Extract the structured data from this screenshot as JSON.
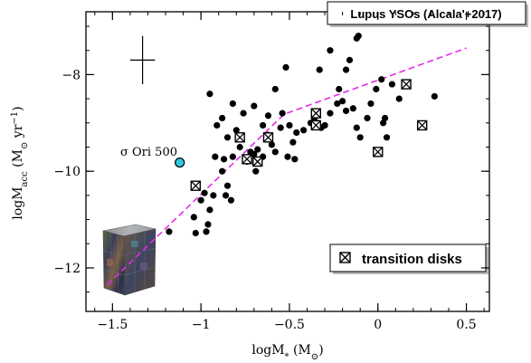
{
  "chart_data": {
    "type": "scatter",
    "title": "Lupus YSOs (Alcala'+2017)",
    "xlabel": {
      "main": "logM",
      "sub": "*",
      "unit_open": " (M",
      "unit_sym": "⊙",
      "unit_close": ")"
    },
    "ylabel": {
      "main": "logM",
      "sub": "acc",
      "unit_open": " (M",
      "unit_sym": "⊙",
      "unit_mid": " yr",
      "unit_sup": "−1",
      "unit_close": ")"
    },
    "xlim": [
      -1.65,
      0.63
    ],
    "ylim": [
      -12.9,
      -6.7
    ],
    "x_ticks": [
      {
        "v": -1.5,
        "label": "−1.5"
      },
      {
        "v": -1,
        "label": "−1"
      },
      {
        "v": -0.5,
        "label": "−0.5"
      },
      {
        "v": 0,
        "label": "0"
      },
      {
        "v": 0.5,
        "label": "0.5"
      }
    ],
    "y_ticks": [
      {
        "v": -8,
        "label": "−8"
      },
      {
        "v": -10,
        "label": "−10"
      },
      {
        "v": -12,
        "label": "−12"
      }
    ],
    "x_minor_step": 0.1,
    "y_minor_step": 0.5,
    "error_bar": {
      "x": -1.33,
      "y": -7.7,
      "dx": 0.07,
      "dy": 0.5
    },
    "series": [
      {
        "marker": "filled-circle",
        "points": [
          [
            -1.18,
            -11.25
          ],
          [
            -1.03,
            -11.28
          ],
          [
            -1.04,
            -10.95
          ],
          [
            -0.97,
            -11.25
          ],
          [
            -0.96,
            -11.1
          ],
          [
            -0.95,
            -10.8
          ],
          [
            -1.0,
            -10.6
          ],
          [
            -0.98,
            -10.45
          ],
          [
            -0.93,
            -10.5
          ],
          [
            -0.86,
            -10.5
          ],
          [
            -0.85,
            -10.3
          ],
          [
            -0.83,
            -10.6
          ],
          [
            -0.88,
            -10.0
          ],
          [
            -0.92,
            -9.7
          ],
          [
            -0.87,
            -9.75
          ],
          [
            -0.82,
            -9.7
          ],
          [
            -0.85,
            -9.3
          ],
          [
            -0.78,
            -9.5
          ],
          [
            -0.74,
            -9.8
          ],
          [
            -0.72,
            -9.6
          ],
          [
            -0.7,
            -9.65
          ],
          [
            -0.68,
            -9.55
          ],
          [
            -0.65,
            -9.7
          ],
          [
            -0.62,
            -9.25
          ],
          [
            -0.6,
            -9.45
          ],
          [
            -0.58,
            -9.6
          ],
          [
            -0.55,
            -9.1
          ],
          [
            -0.51,
            -9.7
          ],
          [
            -0.48,
            -9.4
          ],
          [
            -0.46,
            -9.2
          ],
          [
            -0.42,
            -9.15
          ],
          [
            -0.38,
            -9.0
          ],
          [
            -0.36,
            -8.9
          ],
          [
            -0.3,
            -9.05
          ],
          [
            -0.27,
            -8.8
          ],
          [
            -0.23,
            -8.6
          ],
          [
            -0.22,
            -8.3
          ],
          [
            -0.2,
            -8.55
          ],
          [
            -0.18,
            -8.75
          ],
          [
            -0.14,
            -8.7
          ],
          [
            -0.12,
            -9.1
          ],
          [
            -0.1,
            -9.3
          ],
          [
            -0.06,
            -8.9
          ],
          [
            -0.04,
            -8.6
          ],
          [
            -0.01,
            -8.3
          ],
          [
            0.04,
            -8.9
          ],
          [
            0.05,
            -9.3
          ],
          [
            0.08,
            -8.2
          ],
          [
            0.12,
            -8.5
          ],
          [
            -0.12,
            -7.25
          ],
          [
            -0.11,
            -7.2
          ],
          [
            -0.16,
            -7.7
          ],
          [
            -0.18,
            -7.9
          ],
          [
            -0.27,
            -7.5
          ],
          [
            -0.33,
            -7.9
          ],
          [
            -0.54,
            -8.8
          ],
          [
            -0.58,
            -8.3
          ],
          [
            -0.62,
            -8.85
          ],
          [
            -0.7,
            -8.65
          ],
          [
            -0.76,
            -8.8
          ],
          [
            -0.82,
            -8.6
          ],
          [
            -0.88,
            -8.9
          ],
          [
            -0.95,
            -8.4
          ],
          [
            -0.91,
            -9.05
          ],
          [
            -0.8,
            -9.15
          ],
          [
            -0.65,
            -9.05
          ],
          [
            -0.5,
            -9.05
          ],
          [
            -0.32,
            -9.1
          ],
          [
            0.02,
            -8.1
          ],
          [
            0.32,
            -8.45
          ],
          [
            -0.52,
            -7.85
          ],
          [
            -0.47,
            -9.75
          ],
          [
            -0.69,
            -10.0
          ],
          [
            -0.34,
            -9.0
          ],
          [
            0.03,
            -9.0
          ]
        ]
      },
      {
        "name": "transition disks",
        "marker": "boxed-x",
        "points": [
          [
            -1.03,
            -10.3
          ],
          [
            -0.78,
            -9.3
          ],
          [
            -0.74,
            -9.75
          ],
          [
            -0.68,
            -9.8
          ],
          [
            -0.62,
            -9.3
          ],
          [
            -0.35,
            -8.8
          ],
          [
            -0.35,
            -9.05
          ],
          [
            0.0,
            -9.6
          ],
          [
            0.16,
            -8.2
          ],
          [
            0.25,
            -9.05
          ]
        ]
      }
    ],
    "fit_line": {
      "style": "magenta-dashed",
      "points": [
        [
          -1.53,
          -12.35
        ],
        [
          -0.53,
          -8.82
        ],
        [
          0.5,
          -7.45
        ]
      ]
    },
    "annotation": {
      "label": "σ Ori 500",
      "x": -1.12,
      "y": -9.82
    },
    "legend": {
      "position": "bottom-right",
      "label": "transition disks"
    },
    "colors": {
      "points": "#000000",
      "fit_line": "#e62ae6",
      "sigma_ori": "#33c7dd"
    }
  }
}
